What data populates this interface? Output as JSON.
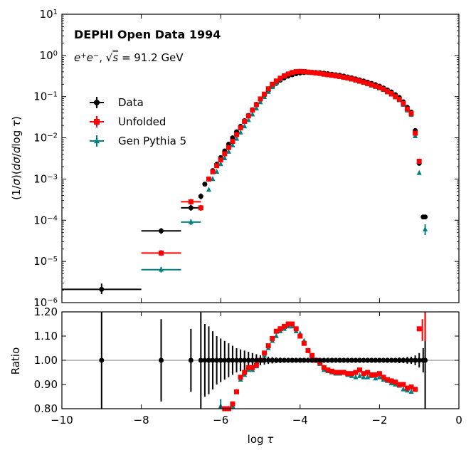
{
  "chart_data": [
    {
      "panel": "main",
      "type": "scatter",
      "yscale": "log",
      "xlim": [
        -10,
        0
      ],
      "ylim_exponents": [
        -6,
        1
      ],
      "ylabel": "(1/σ)(dσ/dlog τ)",
      "yticklabels": [
        "10−6",
        "10−5",
        "10−4",
        "10−3",
        "10−2",
        "10−1",
        "100",
        "101"
      ],
      "title": "DEPHI Open Data 1994",
      "subtitle_plain": "e+e−, √s = 91.2 GeV",
      "legend": [
        "Data",
        "Unfolded",
        "Gen Pythia 5"
      ],
      "legend_position": "upper-left",
      "series": [
        {
          "name": "Data",
          "color": "#000000",
          "marker": "circle",
          "wide_points": [
            {
              "x": -9.0,
              "y": 2.1e-06,
              "xerr": 1.0,
              "ylo": 1.6e-06,
              "yhi": 2.9e-06
            },
            {
              "x": -7.5,
              "y": 5.5e-05,
              "xerr": 0.5
            },
            {
              "x": -6.75,
              "y": 0.0002,
              "xerr": 0.25
            },
            {
              "x": -6.5,
              "y": 0.00038,
              "xerr": 0.05
            }
          ],
          "x": [
            -6.4,
            -6.3,
            -6.2,
            -6.1,
            -6.0,
            -5.9,
            -5.8,
            -5.7,
            -5.6,
            -5.5,
            -5.4,
            -5.3,
            -5.2,
            -5.1,
            -5.0,
            -4.9,
            -4.8,
            -4.7,
            -4.6,
            -4.5,
            -4.4,
            -4.3,
            -4.2,
            -4.1,
            -4.0,
            -3.9,
            -3.8,
            -3.7,
            -3.6,
            -3.5,
            -3.4,
            -3.3,
            -3.2,
            -3.1,
            -3.0,
            -2.9,
            -2.8,
            -2.7,
            -2.6,
            -2.5,
            -2.4,
            -2.3,
            -2.2,
            -2.1,
            -2.0,
            -1.9,
            -1.8,
            -1.7,
            -1.6,
            -1.5,
            -1.4,
            -1.3,
            -1.2,
            -1.1,
            -1.0,
            -0.9,
            -0.85
          ],
          "y": [
            0.00075,
            0.001,
            0.0016,
            0.0023,
            0.0033,
            0.0048,
            0.007,
            0.01,
            0.014,
            0.019,
            0.026,
            0.035,
            0.048,
            0.065,
            0.085,
            0.11,
            0.14,
            0.175,
            0.21,
            0.25,
            0.285,
            0.315,
            0.34,
            0.36,
            0.375,
            0.385,
            0.39,
            0.39,
            0.385,
            0.38,
            0.37,
            0.36,
            0.35,
            0.34,
            0.33,
            0.315,
            0.3,
            0.285,
            0.27,
            0.255,
            0.24,
            0.225,
            0.21,
            0.195,
            0.18,
            0.162,
            0.145,
            0.13,
            0.112,
            0.095,
            0.075,
            0.055,
            0.042,
            0.015,
            0.0024,
            0.00012,
            0.00012
          ]
        },
        {
          "name": "Unfolded",
          "color": "#ff0000",
          "marker": "square",
          "wide_points": [
            {
              "x": -7.5,
              "y": 1.6e-05,
              "xerr": 0.5
            },
            {
              "x": -6.75,
              "y": 0.00028,
              "xerr": 0.25
            },
            {
              "x": -6.5,
              "y": 0.0002,
              "xerr": 0.05
            }
          ],
          "x": [
            -6.3,
            -6.2,
            -6.1,
            -6.0,
            -5.9,
            -5.8,
            -5.7,
            -5.6,
            -5.5,
            -5.4,
            -5.3,
            -5.2,
            -5.1,
            -5.0,
            -4.9,
            -4.8,
            -4.7,
            -4.6,
            -4.5,
            -4.4,
            -4.3,
            -4.2,
            -4.1,
            -4.0,
            -3.9,
            -3.8,
            -3.7,
            -3.6,
            -3.5,
            -3.4,
            -3.3,
            -3.2,
            -3.1,
            -3.0,
            -2.9,
            -2.8,
            -2.7,
            -2.6,
            -2.5,
            -2.4,
            -2.3,
            -2.2,
            -2.1,
            -2.0,
            -1.9,
            -1.8,
            -1.7,
            -1.6,
            -1.5,
            -1.4,
            -1.3,
            -1.2,
            -1.1,
            -1.0
          ],
          "y": [
            0.001,
            0.0015,
            0.0021,
            0.0029,
            0.0041,
            0.0058,
            0.0082,
            0.012,
            0.0175,
            0.025,
            0.034,
            0.047,
            0.064,
            0.088,
            0.115,
            0.155,
            0.2,
            0.24,
            0.28,
            0.32,
            0.355,
            0.385,
            0.405,
            0.41,
            0.405,
            0.395,
            0.385,
            0.375,
            0.365,
            0.35,
            0.34,
            0.33,
            0.32,
            0.31,
            0.295,
            0.285,
            0.27,
            0.255,
            0.24,
            0.225,
            0.21,
            0.195,
            0.18,
            0.168,
            0.152,
            0.133,
            0.118,
            0.1,
            0.086,
            0.068,
            0.05,
            0.039,
            0.013,
            0.0027
          ]
        },
        {
          "name": "Gen Pythia 5",
          "color": "#008080",
          "marker": "triangle",
          "wide_points": [
            {
              "x": -7.5,
              "y": 6.3e-06,
              "xerr": 0.5
            },
            {
              "x": -6.75,
              "y": 9e-05,
              "xerr": 0.25
            },
            {
              "x": -6.5,
              "y": 0.0002,
              "xerr": 0.05
            }
          ],
          "x": [
            -6.3,
            -6.2,
            -6.1,
            -6.0,
            -5.9,
            -5.8,
            -5.7,
            -5.6,
            -5.5,
            -5.4,
            -5.3,
            -5.2,
            -5.1,
            -5.0,
            -4.9,
            -4.8,
            -4.7,
            -4.6,
            -4.5,
            -4.4,
            -4.3,
            -4.2,
            -4.1,
            -4.0,
            -3.9,
            -3.8,
            -3.7,
            -3.6,
            -3.5,
            -3.4,
            -3.3,
            -3.2,
            -3.1,
            -3.0,
            -2.9,
            -2.8,
            -2.7,
            -2.6,
            -2.5,
            -2.4,
            -2.3,
            -2.2,
            -2.1,
            -2.0,
            -1.9,
            -1.8,
            -1.7,
            -1.6,
            -1.5,
            -1.4,
            -1.3,
            -1.2,
            -1.1,
            -1.0,
            -0.85
          ],
          "y": [
            0.00055,
            0.001,
            0.0015,
            0.0023,
            0.0032,
            0.0046,
            0.0066,
            0.0095,
            0.0135,
            0.019,
            0.027,
            0.037,
            0.052,
            0.073,
            0.098,
            0.13,
            0.17,
            0.215,
            0.26,
            0.305,
            0.345,
            0.38,
            0.4,
            0.405,
            0.4,
            0.39,
            0.38,
            0.37,
            0.36,
            0.345,
            0.335,
            0.325,
            0.31,
            0.3,
            0.285,
            0.275,
            0.26,
            0.245,
            0.23,
            0.215,
            0.2,
            0.185,
            0.172,
            0.16,
            0.145,
            0.127,
            0.112,
            0.096,
            0.082,
            0.063,
            0.046,
            0.036,
            0.011,
            0.0014,
            6e-05
          ]
        }
      ]
    },
    {
      "panel": "ratio",
      "type": "scatter",
      "xlim": [
        -10,
        0
      ],
      "ylim": [
        0.8,
        1.2
      ],
      "xlabel": "log τ",
      "ylabel": "Ratio",
      "xticks": [
        -10,
        -8,
        -6,
        -4,
        -2,
        0
      ],
      "xticklabels": [
        "−10",
        "−8",
        "−6",
        "−4",
        "−2",
        "0"
      ],
      "yticks": [
        0.8,
        0.9,
        1.0,
        1.1,
        1.2
      ],
      "yticklabels": [
        "0.80",
        "0.90",
        "1.00",
        "1.10",
        "1.20"
      ],
      "reference_line": 1.0,
      "series": [
        {
          "name": "Data",
          "color": "#000000",
          "x": [
            -9.0,
            -7.5,
            -6.75,
            -6.5,
            -6.4,
            -6.3,
            -6.2,
            -6.1,
            -6.0,
            -5.9,
            -5.8,
            -5.7,
            -5.6,
            -5.5,
            -5.4,
            -5.3,
            -5.2,
            -5.1,
            -5.0,
            -4.9,
            -4.8,
            -4.7,
            -4.6,
            -4.5,
            -4.4,
            -4.3,
            -4.2,
            -4.1,
            -4.0,
            -3.9,
            -3.8,
            -3.7,
            -3.6,
            -3.5,
            -3.4,
            -3.3,
            -3.2,
            -3.1,
            -3.0,
            -2.9,
            -2.8,
            -2.7,
            -2.6,
            -2.5,
            -2.4,
            -2.3,
            -2.2,
            -2.1,
            -2.0,
            -1.9,
            -1.8,
            -1.7,
            -1.6,
            -1.5,
            -1.4,
            -1.3,
            -1.2,
            -1.1,
            -1.0,
            -0.9,
            -0.85
          ],
          "y_err": [
            0.4,
            0.17,
            0.13,
            0.4,
            0.15,
            0.14,
            0.12,
            0.1,
            0.09,
            0.08,
            0.07,
            0.06,
            0.05,
            0.045,
            0.04,
            0.035,
            0.03,
            0.025,
            0.02,
            0.018,
            0.015,
            0.013,
            0.012,
            0.011,
            0.01,
            0.01,
            0.01,
            0.01,
            0.01,
            0.01,
            0.01,
            0.01,
            0.01,
            0.01,
            0.01,
            0.01,
            0.01,
            0.01,
            0.01,
            0.01,
            0.01,
            0.01,
            0.01,
            0.01,
            0.01,
            0.01,
            0.01,
            0.01,
            0.01,
            0.01,
            0.01,
            0.01,
            0.01,
            0.012,
            0.012,
            0.014,
            0.015,
            0.02,
            0.03,
            0.05,
            0.4
          ]
        },
        {
          "name": "Unfolded",
          "color": "#ff0000",
          "x": [
            -5.9,
            -5.8,
            -5.7,
            -5.6,
            -5.5,
            -5.4,
            -5.3,
            -5.2,
            -5.1,
            -5.0,
            -4.9,
            -4.8,
            -4.7,
            -4.6,
            -4.5,
            -4.4,
            -4.3,
            -4.2,
            -4.1,
            -4.0,
            -3.9,
            -3.8,
            -3.7,
            -3.6,
            -3.5,
            -3.4,
            -3.3,
            -3.2,
            -3.1,
            -3.0,
            -2.9,
            -2.8,
            -2.7,
            -2.6,
            -2.5,
            -2.4,
            -2.3,
            -2.2,
            -2.1,
            -2.0,
            -1.9,
            -1.8,
            -1.7,
            -1.6,
            -1.5,
            -1.4,
            -1.3,
            -1.2,
            -1.1,
            -1.0
          ],
          "y": [
            0.8,
            0.8,
            0.82,
            0.87,
            0.93,
            0.95,
            0.97,
            0.97,
            0.98,
            1.0,
            1.03,
            1.06,
            1.09,
            1.12,
            1.13,
            1.14,
            1.15,
            1.15,
            1.13,
            1.1,
            1.07,
            1.04,
            1.02,
            1.0,
            0.99,
            0.97,
            0.96,
            0.955,
            0.95,
            0.95,
            0.95,
            0.945,
            0.945,
            0.95,
            0.96,
            0.945,
            0.95,
            0.94,
            0.94,
            0.945,
            0.93,
            0.92,
            0.915,
            0.91,
            0.9,
            0.9,
            0.885,
            0.89,
            0.88,
            1.13
          ]
        },
        {
          "name": "Gen Pythia 5",
          "color": "#008080",
          "x": [
            -6.0,
            -5.9,
            -5.8,
            -5.7,
            -5.6,
            -5.5,
            -5.4,
            -5.3,
            -5.2,
            -5.1,
            -5.0,
            -4.9,
            -4.8,
            -4.7,
            -4.6,
            -4.5,
            -4.4,
            -4.3,
            -4.2,
            -4.1,
            -4.0,
            -3.9,
            -3.8,
            -3.7,
            -3.6,
            -3.5,
            -3.4,
            -3.3,
            -3.2,
            -3.1,
            -3.0,
            -2.9,
            -2.8,
            -2.7,
            -2.6,
            -2.5,
            -2.4,
            -2.3,
            -2.2,
            -2.1,
            -2.0,
            -1.9,
            -1.8,
            -1.7,
            -1.6,
            -1.5,
            -1.4,
            -1.3,
            -1.2
          ],
          "y": [
            0.81,
            0.79,
            0.8,
            0.81,
            0.87,
            0.92,
            0.94,
            0.96,
            0.96,
            0.975,
            1.0,
            1.02,
            1.05,
            1.08,
            1.1,
            1.12,
            1.13,
            1.14,
            1.14,
            1.12,
            1.11,
            1.08,
            1.04,
            1.01,
            1.0,
            0.985,
            0.96,
            0.955,
            0.95,
            0.945,
            0.945,
            0.95,
            0.94,
            0.935,
            0.93,
            0.935,
            0.93,
            0.93,
            0.935,
            0.925,
            0.93,
            0.92,
            0.915,
            0.905,
            0.9,
            0.895,
            0.88,
            0.875,
            0.87
          ]
        }
      ]
    }
  ]
}
